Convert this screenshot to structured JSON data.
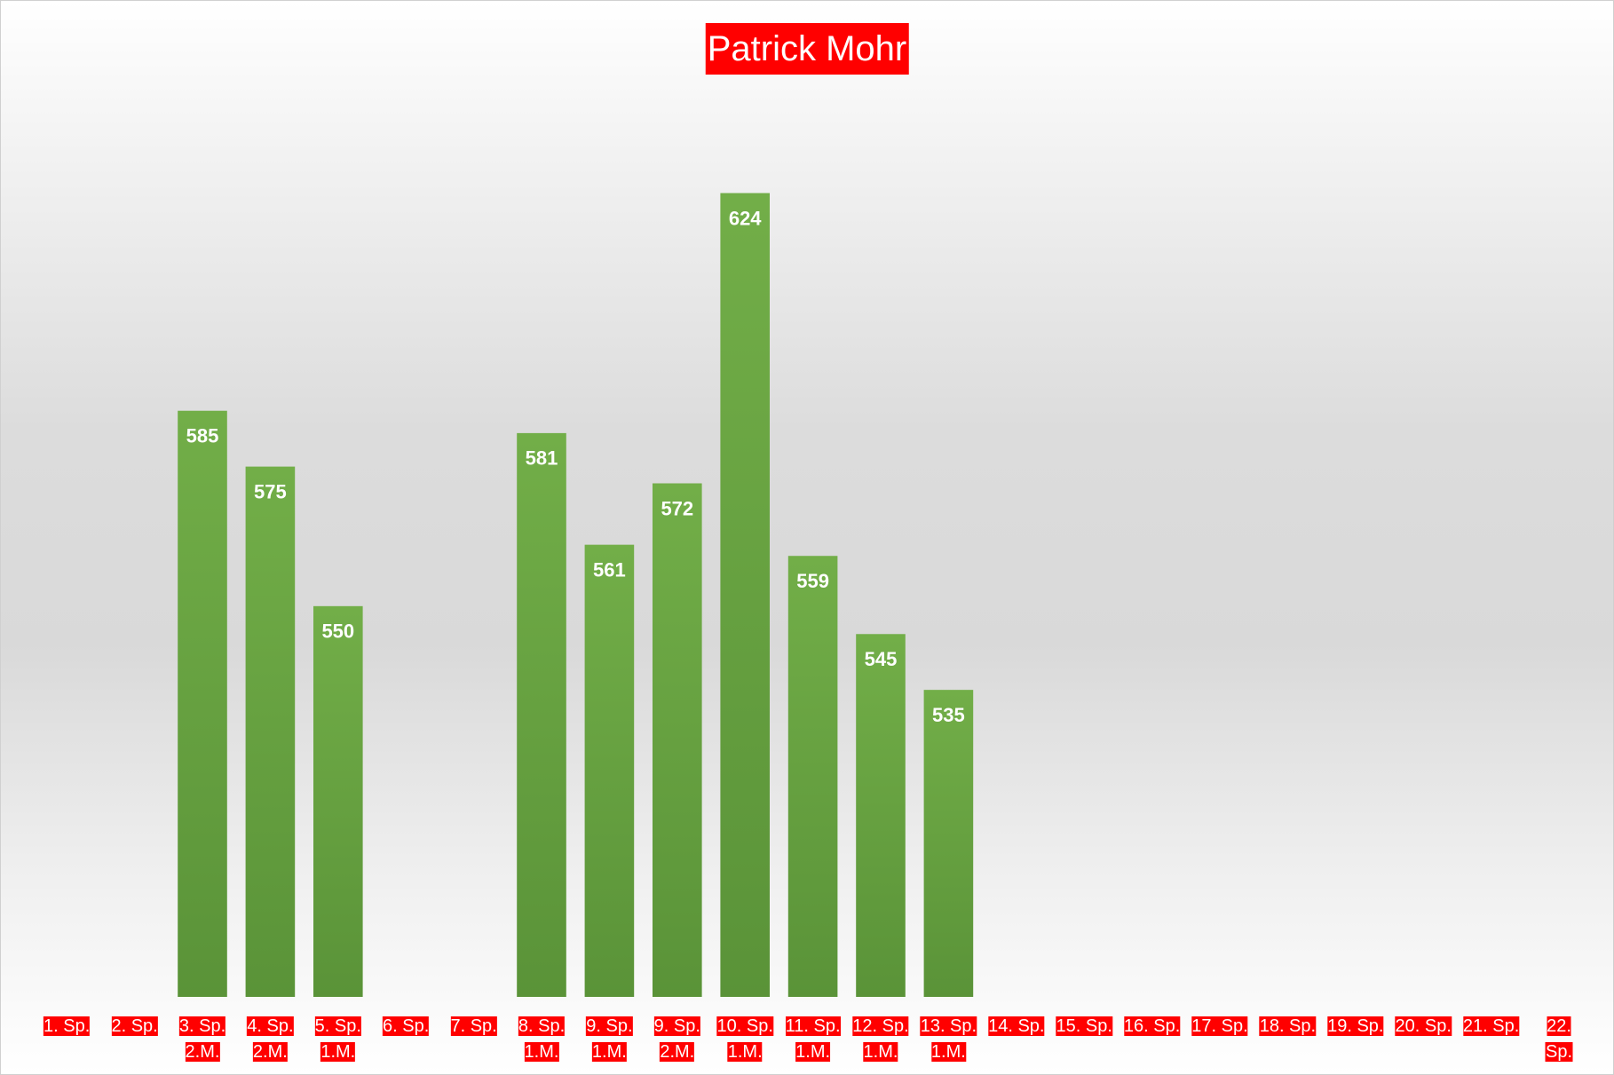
{
  "chart_data": {
    "type": "bar",
    "title": "Patrick Mohr",
    "categories": [
      "1. Sp.",
      "2. Sp.",
      "3. Sp.\n2.M.",
      "4. Sp.\n2.M.",
      "5. Sp.\n1.M.",
      "6. Sp.",
      "7. Sp.",
      "8. Sp.\n1.M.",
      "9. Sp.\n1.M.",
      "9. Sp.\n2.M.",
      "10. Sp.\n1.M.",
      "11. Sp.\n1.M.",
      "12. Sp.\n1.M.",
      "13. Sp.\n1.M.",
      "14. Sp.",
      "15. Sp.",
      "16. Sp.",
      "17. Sp.",
      "18. Sp.",
      "19. Sp.",
      "20. Sp.",
      "21. Sp.",
      "22. Sp."
    ],
    "values": [
      null,
      null,
      585,
      575,
      550,
      null,
      null,
      581,
      561,
      572,
      624,
      559,
      545,
      535,
      null,
      null,
      null,
      null,
      null,
      null,
      null,
      null,
      null
    ],
    "color": "#70ad47",
    "ylim": [
      480,
      650
    ]
  }
}
